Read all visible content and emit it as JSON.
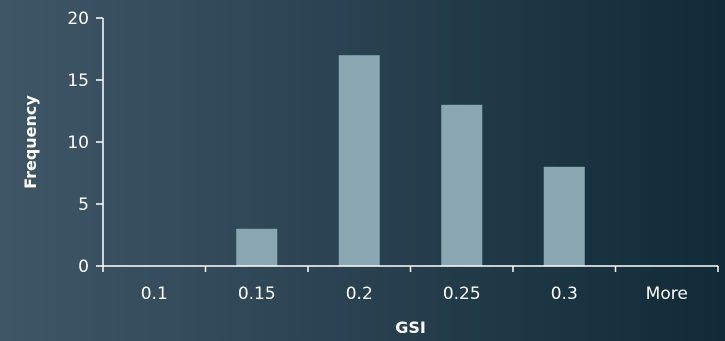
{
  "chart_data": {
    "type": "bar",
    "categories": [
      "0.1",
      "0.15",
      "0.2",
      "0.25",
      "0.3",
      "More"
    ],
    "values": [
      0,
      3,
      17,
      13,
      8,
      0
    ],
    "xlabel": "GSI",
    "ylabel": "Frequency",
    "ylim": [
      0,
      20
    ],
    "yticks": [
      "0",
      "5",
      "10",
      "15",
      "20"
    ],
    "grid": false,
    "legend": "none",
    "colors": {
      "bar": "#8aa7b1",
      "axis": "#ffffff",
      "text": "#ffffff",
      "background_start": "#3e5666",
      "background_end": "#102a37"
    }
  }
}
